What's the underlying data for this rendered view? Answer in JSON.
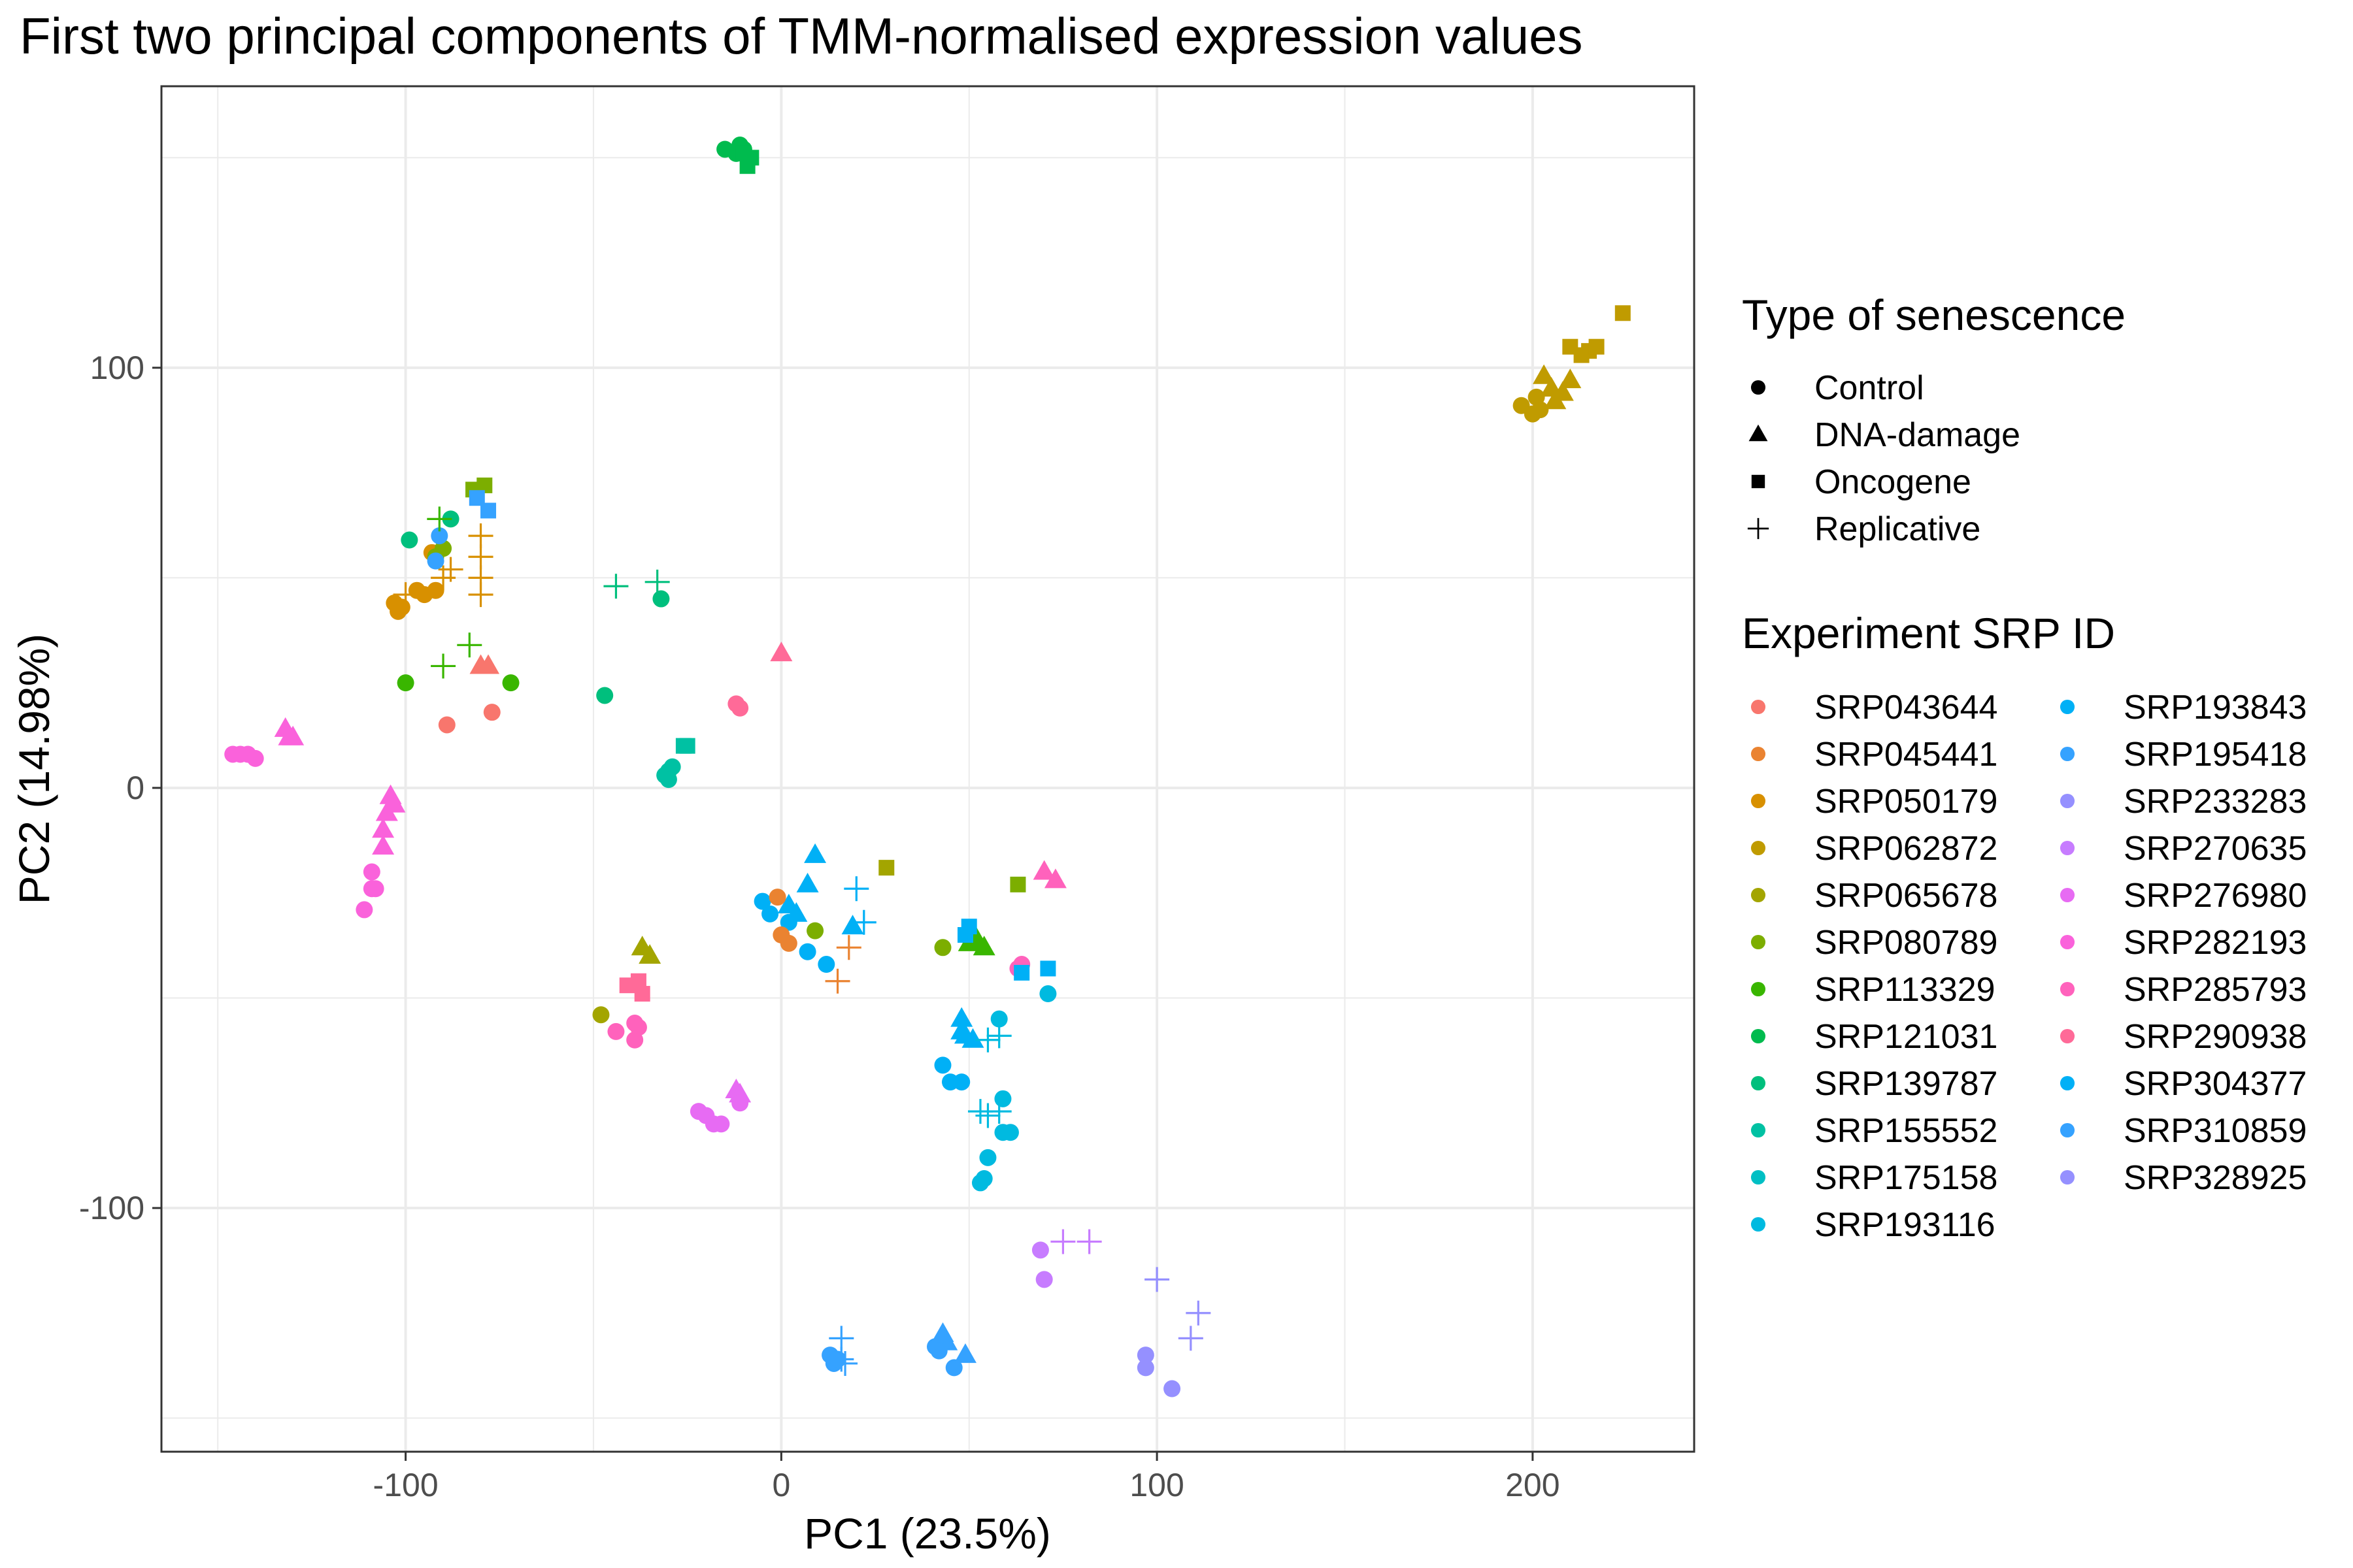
{
  "chart_data": {
    "type": "scatter",
    "title": "First two principal components of TMM-normalised expression values",
    "xlabel": "PC1 (23.5%)",
    "ylabel": "PC2 (14.98%)",
    "xlim": [
      -165,
      243
    ],
    "ylim": [
      -158,
      167
    ],
    "x_ticks": [
      -100,
      0,
      100,
      200
    ],
    "x_tick_labels": [
      "-100",
      "0",
      "100",
      "200"
    ],
    "y_ticks": [
      -100,
      0,
      100
    ],
    "y_tick_labels": [
      "-100",
      "0",
      "100"
    ],
    "grid": true,
    "legend_placement": "right",
    "shape_legend": {
      "title": "Type of senescence",
      "items": [
        {
          "label": "Control",
          "shape": "circle"
        },
        {
          "label": "DNA-damage",
          "shape": "triangle"
        },
        {
          "label": "Oncogene",
          "shape": "square"
        },
        {
          "label": "Replicative",
          "shape": "plus"
        }
      ]
    },
    "color_legend": {
      "title": "Experiment SRP ID",
      "items": [
        {
          "label": "SRP043644",
          "color": "#F8766D"
        },
        {
          "label": "SRP045441",
          "color": "#EA8331"
        },
        {
          "label": "SRP050179",
          "color": "#D89000"
        },
        {
          "label": "SRP062872",
          "color": "#C09B00"
        },
        {
          "label": "SRP065678",
          "color": "#A3A500"
        },
        {
          "label": "SRP080789",
          "color": "#7CAE00"
        },
        {
          "label": "SRP113329",
          "color": "#39B600"
        },
        {
          "label": "SRP121031",
          "color": "#00BB4E"
        },
        {
          "label": "SRP139787",
          "color": "#00BF7D"
        },
        {
          "label": "SRP155552",
          "color": "#00C1A3"
        },
        {
          "label": "SRP175158",
          "color": "#00BFC4"
        },
        {
          "label": "SRP193116",
          "color": "#00BAE0"
        },
        {
          "label": "SRP193843",
          "color": "#00B0F6"
        },
        {
          "label": "SRP195418",
          "color": "#35A2FF"
        },
        {
          "label": "SRP233283",
          "color": "#9590FF"
        },
        {
          "label": "SRP270635",
          "color": "#C77CFF"
        },
        {
          "label": "SRP276980",
          "color": "#E76BF3"
        },
        {
          "label": "SRP282193",
          "color": "#FA62DB"
        },
        {
          "label": "SRP285793",
          "color": "#FF62BC"
        },
        {
          "label": "SRP290938",
          "color": "#FF6A98"
        },
        {
          "label": "SRP304377",
          "color": "#00B0F6"
        },
        {
          "label": "SRP310859",
          "color": "#35A2FF"
        },
        {
          "label": "SRP328925",
          "color": "#9590FF"
        }
      ]
    },
    "series": [
      {
        "color": "#00BB4E",
        "shape": "circle",
        "points": [
          [
            -15,
            152
          ],
          [
            -12,
            151
          ],
          [
            -11,
            153
          ],
          [
            -10,
            152
          ]
        ]
      },
      {
        "color": "#00BB4E",
        "shape": "square",
        "points": [
          [
            -9,
            148
          ],
          [
            -8,
            150
          ],
          [
            -10,
            151
          ]
        ]
      },
      {
        "color": "#C09B00",
        "shape": "circle",
        "points": [
          [
            197,
            91
          ],
          [
            200,
            89
          ],
          [
            201,
            93
          ],
          [
            202,
            90
          ]
        ]
      },
      {
        "color": "#C09B00",
        "shape": "triangle",
        "points": [
          [
            203,
            98
          ],
          [
            205,
            95
          ],
          [
            206,
            92
          ],
          [
            208,
            94
          ],
          [
            210,
            97
          ]
        ]
      },
      {
        "color": "#C09B00",
        "shape": "square",
        "points": [
          [
            210,
            105
          ],
          [
            213,
            103
          ],
          [
            215,
            104
          ],
          [
            217,
            105
          ],
          [
            224,
            113
          ]
        ]
      },
      {
        "color": "#D89000",
        "shape": "circle",
        "points": [
          [
            -103,
            44
          ],
          [
            -102,
            42
          ],
          [
            -101,
            43
          ],
          [
            -97,
            47
          ],
          [
            -95,
            46
          ],
          [
            -92,
            47
          ],
          [
            -93,
            56
          ]
        ]
      },
      {
        "color": "#D89000",
        "shape": "plus",
        "points": [
          [
            -100,
            46
          ],
          [
            -90,
            50
          ],
          [
            -80,
            60
          ],
          [
            -80,
            55
          ],
          [
            -80,
            50
          ],
          [
            -80,
            46
          ],
          [
            -88,
            52
          ]
        ]
      },
      {
        "color": "#7CAE00",
        "shape": "circle",
        "points": [
          [
            -90,
            57
          ],
          [
            -92,
            55
          ]
        ]
      },
      {
        "color": "#7CAE00",
        "shape": "square",
        "points": [
          [
            -82,
            71
          ],
          [
            -79,
            72
          ]
        ]
      },
      {
        "color": "#35A2FF",
        "shape": "circle",
        "points": [
          [
            -91,
            60
          ],
          [
            -92,
            54
          ]
        ]
      },
      {
        "color": "#35A2FF",
        "shape": "square",
        "points": [
          [
            -81,
            69
          ],
          [
            -78,
            66
          ]
        ]
      },
      {
        "color": "#00BF7D",
        "shape": "circle",
        "points": [
          [
            -99,
            59
          ],
          [
            -88,
            64
          ]
        ]
      },
      {
        "color": "#39B600",
        "shape": "plus",
        "points": [
          [
            -91,
            64
          ],
          [
            -83,
            34
          ],
          [
            -90,
            29
          ]
        ]
      },
      {
        "color": "#39B600",
        "shape": "circle",
        "points": [
          [
            -100,
            25
          ],
          [
            -72,
            25
          ]
        ]
      },
      {
        "color": "#F8766D",
        "shape": "triangle",
        "points": [
          [
            -80,
            29
          ],
          [
            -78,
            29
          ]
        ]
      },
      {
        "color": "#F8766D",
        "shape": "circle",
        "points": [
          [
            -89,
            15
          ],
          [
            -77,
            18
          ]
        ]
      },
      {
        "color": "#00BF7D",
        "shape": "plus",
        "points": [
          [
            -44,
            48
          ],
          [
            -33,
            49
          ]
        ]
      },
      {
        "color": "#00BF7D",
        "shape": "circle",
        "points": [
          [
            -32,
            45
          ],
          [
            -47,
            22
          ]
        ]
      },
      {
        "color": "#FF6A98",
        "shape": "triangle",
        "points": [
          [
            0,
            32
          ]
        ]
      },
      {
        "color": "#FF6A98",
        "shape": "circle",
        "points": [
          [
            -12,
            20
          ],
          [
            -11,
            19
          ]
        ]
      },
      {
        "color": "#00C1A3",
        "shape": "square",
        "points": [
          [
            -26,
            10
          ],
          [
            -25,
            10
          ]
        ]
      },
      {
        "color": "#00C1A3",
        "shape": "circle",
        "points": [
          [
            -30,
            4
          ],
          [
            -31,
            3
          ],
          [
            -29,
            5
          ],
          [
            -30,
            2
          ]
        ]
      },
      {
        "color": "#FA62DB",
        "shape": "circle",
        "points": [
          [
            -146,
            8
          ],
          [
            -144,
            8
          ],
          [
            -142,
            8
          ],
          [
            -140,
            7
          ]
        ]
      },
      {
        "color": "#FA62DB",
        "shape": "triangle",
        "points": [
          [
            -132,
            14
          ],
          [
            -131,
            12
          ],
          [
            -130,
            12
          ]
        ]
      },
      {
        "color": "#FA62DB",
        "shape": "triangle",
        "points": [
          [
            -104,
            -2
          ],
          [
            -105,
            -6
          ],
          [
            -103,
            -4
          ],
          [
            -106,
            -10
          ],
          [
            -106,
            -14
          ]
        ]
      },
      {
        "color": "#FA62DB",
        "shape": "circle",
        "points": [
          [
            -109,
            -20
          ],
          [
            -109,
            -24
          ],
          [
            -108,
            -24
          ],
          [
            -111,
            -29
          ]
        ]
      },
      {
        "color": "#00B0F6",
        "shape": "triangle",
        "points": [
          [
            9,
            -16
          ],
          [
            7,
            -23
          ]
        ]
      },
      {
        "color": "#00B0F6",
        "shape": "circle",
        "points": [
          [
            -5,
            -27
          ],
          [
            -3,
            -30
          ],
          [
            2,
            -32
          ],
          [
            7,
            -39
          ],
          [
            12,
            -42
          ]
        ]
      },
      {
        "color": "#00B0F6",
        "shape": "triangle",
        "points": [
          [
            2,
            -28
          ],
          [
            4,
            -30
          ]
        ]
      },
      {
        "color": "#00B0F6",
        "shape": "plus",
        "points": [
          [
            20,
            -24
          ],
          [
            22,
            -32
          ]
        ]
      },
      {
        "color": "#00B0F6",
        "shape": "triangle",
        "points": [
          [
            19,
            -33
          ]
        ]
      },
      {
        "color": "#EA8331",
        "shape": "circle",
        "points": [
          [
            -1,
            -26
          ],
          [
            0,
            -35
          ],
          [
            2,
            -37
          ]
        ]
      },
      {
        "color": "#EA8331",
        "shape": "plus",
        "points": [
          [
            18,
            -38
          ],
          [
            15,
            -46
          ]
        ]
      },
      {
        "color": "#7CAE00",
        "shape": "circle",
        "points": [
          [
            9,
            -34
          ]
        ]
      },
      {
        "color": "#A3A500",
        "shape": "square",
        "points": [
          [
            28,
            -19
          ]
        ]
      },
      {
        "color": "#7CAE00",
        "shape": "circle",
        "points": [
          [
            43,
            -38
          ]
        ]
      },
      {
        "color": "#39B600",
        "shape": "triangle",
        "points": [
          [
            50,
            -37
          ],
          [
            52,
            -36
          ],
          [
            54,
            -38
          ]
        ]
      },
      {
        "color": "#00B0F6",
        "shape": "square",
        "points": [
          [
            49,
            -35
          ],
          [
            50,
            -33
          ]
        ]
      },
      {
        "color": "#7CAE00",
        "shape": "square",
        "points": [
          [
            63,
            -23
          ]
        ]
      },
      {
        "color": "#FF62BC",
        "shape": "triangle",
        "points": [
          [
            70,
            -20
          ],
          [
            73,
            -22
          ]
        ]
      },
      {
        "color": "#FF62BC",
        "shape": "circle",
        "points": [
          [
            63,
            -43
          ],
          [
            64,
            -42
          ]
        ]
      },
      {
        "color": "#00B0F6",
        "shape": "square",
        "points": [
          [
            71,
            -43
          ],
          [
            64,
            -44
          ]
        ]
      },
      {
        "color": "#00BAE0",
        "shape": "circle",
        "points": [
          [
            71,
            -49
          ],
          [
            58,
            -55
          ]
        ]
      },
      {
        "color": "#00B0F6",
        "shape": "triangle",
        "points": [
          [
            48,
            -55
          ],
          [
            48,
            -58
          ],
          [
            49,
            -59
          ],
          [
            51,
            -60
          ]
        ]
      },
      {
        "color": "#00BAE0",
        "shape": "plus",
        "points": [
          [
            55,
            -60
          ],
          [
            58,
            -59
          ]
        ]
      },
      {
        "color": "#00B0F6",
        "shape": "circle",
        "points": [
          [
            43,
            -66
          ],
          [
            45,
            -70
          ],
          [
            48,
            -70
          ]
        ]
      },
      {
        "color": "#00BAE0",
        "shape": "circle",
        "points": [
          [
            59,
            -74
          ],
          [
            59,
            -82
          ],
          [
            61,
            -82
          ],
          [
            55,
            -88
          ],
          [
            54,
            -93
          ],
          [
            53,
            -94
          ]
        ]
      },
      {
        "color": "#00BAE0",
        "shape": "plus",
        "points": [
          [
            53,
            -77
          ],
          [
            55,
            -78
          ],
          [
            58,
            -77
          ]
        ]
      },
      {
        "color": "#A3A500",
        "shape": "triangle",
        "points": [
          [
            -37,
            -38
          ],
          [
            -35,
            -40
          ]
        ]
      },
      {
        "color": "#A3A500",
        "shape": "circle",
        "points": [
          [
            -48,
            -54
          ]
        ]
      },
      {
        "color": "#FF6A98",
        "shape": "square",
        "points": [
          [
            -41,
            -47
          ],
          [
            -38,
            -46
          ],
          [
            -37,
            -49
          ]
        ]
      },
      {
        "color": "#FF62BC",
        "shape": "circle",
        "points": [
          [
            -44,
            -58
          ],
          [
            -39,
            -56
          ],
          [
            -38,
            -57
          ],
          [
            -39,
            -60
          ]
        ]
      },
      {
        "color": "#E76BF3",
        "shape": "triangle",
        "points": [
          [
            -12,
            -72
          ],
          [
            -11,
            -73
          ]
        ]
      },
      {
        "color": "#E76BF3",
        "shape": "circle",
        "points": [
          [
            -22,
            -77
          ],
          [
            -20,
            -78
          ],
          [
            -18,
            -80
          ],
          [
            -16,
            -80
          ],
          [
            -11,
            -75
          ]
        ]
      },
      {
        "color": "#C77CFF",
        "shape": "circle",
        "points": [
          [
            69,
            -110
          ],
          [
            70,
            -117
          ]
        ]
      },
      {
        "color": "#C77CFF",
        "shape": "plus",
        "points": [
          [
            75,
            -108
          ],
          [
            82,
            -108
          ]
        ]
      },
      {
        "color": "#9590FF",
        "shape": "plus",
        "points": [
          [
            100,
            -117
          ],
          [
            111,
            -125
          ],
          [
            109,
            -131
          ]
        ]
      },
      {
        "color": "#9590FF",
        "shape": "circle",
        "points": [
          [
            97,
            -135
          ],
          [
            97,
            -138
          ],
          [
            104,
            -143
          ]
        ]
      },
      {
        "color": "#35A2FF",
        "shape": "plus",
        "points": [
          [
            16,
            -131
          ],
          [
            16,
            -136
          ],
          [
            17,
            -137
          ]
        ]
      },
      {
        "color": "#35A2FF",
        "shape": "circle",
        "points": [
          [
            13,
            -135
          ],
          [
            14,
            -137
          ],
          [
            15,
            -136
          ]
        ]
      },
      {
        "color": "#35A2FF",
        "shape": "triangle",
        "points": [
          [
            43,
            -130
          ],
          [
            44,
            -132
          ],
          [
            49,
            -135
          ]
        ]
      },
      {
        "color": "#35A2FF",
        "shape": "circle",
        "points": [
          [
            41,
            -133
          ],
          [
            42,
            -134
          ],
          [
            46,
            -138
          ]
        ]
      }
    ]
  }
}
